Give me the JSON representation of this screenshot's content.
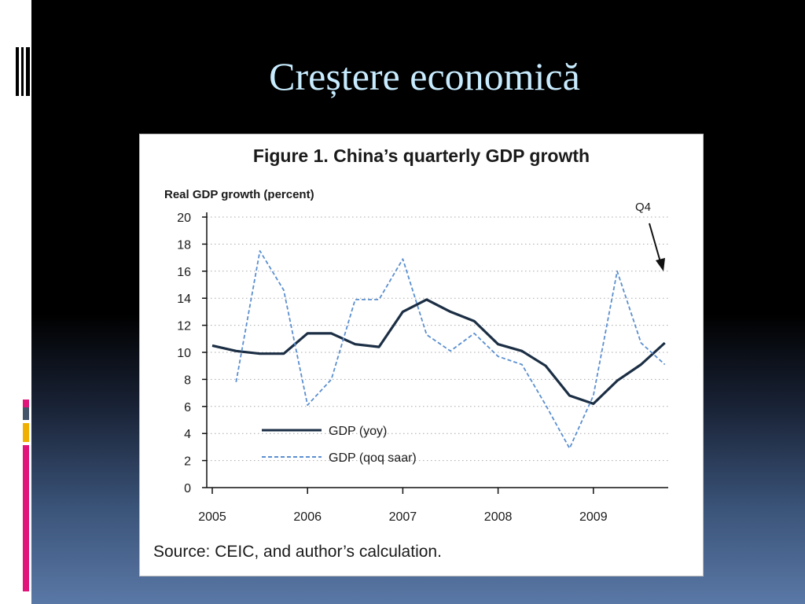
{
  "slide": {
    "title": "Creștere economică"
  },
  "theme": {
    "title_color": "#c8ecff",
    "yoy_color": "#1b2e44",
    "qoq_color": "#5b8fd0",
    "accent_colors": [
      "#e0147a",
      "#44556b",
      "#f0b000",
      "#e0147a"
    ]
  },
  "chart_data": {
    "type": "line",
    "title": "Figure 1. China’s quarterly GDP growth",
    "ylabel": "Real GDP growth (percent)",
    "ylim": [
      0,
      20
    ],
    "yticks": [
      "0",
      "2",
      "4",
      "6",
      "8",
      "10",
      "12",
      "14",
      "16",
      "18",
      "20"
    ],
    "year_labels": [
      "2005",
      "2006",
      "2007",
      "2008",
      "2009"
    ],
    "grid": true,
    "legend_position": "bottom-left",
    "annotation": "Q4",
    "source": "Source: CEIC, and author’s calculation.",
    "x": [
      "2005Q1",
      "2005Q2",
      "2005Q3",
      "2005Q4",
      "2006Q1",
      "2006Q2",
      "2006Q3",
      "2006Q4",
      "2007Q1",
      "2007Q2",
      "2007Q3",
      "2007Q4",
      "2008Q1",
      "2008Q2",
      "2008Q3",
      "2008Q4",
      "2009Q1",
      "2009Q2",
      "2009Q3",
      "2009Q4"
    ],
    "series": [
      {
        "name": "GDP (yoy)",
        "style": "solid",
        "values": [
          10.5,
          10.1,
          9.9,
          9.9,
          11.4,
          11.4,
          10.6,
          10.4,
          13.0,
          13.9,
          13.0,
          12.3,
          10.6,
          10.1,
          9.0,
          6.8,
          6.2,
          7.9,
          9.1,
          10.7
        ]
      },
      {
        "name": "GDP (qoq saar)",
        "style": "dashed",
        "values": [
          null,
          7.8,
          17.5,
          14.6,
          6.1,
          8.0,
          13.9,
          13.9,
          16.9,
          11.3,
          10.1,
          11.4,
          9.7,
          9.1,
          6.1,
          2.9,
          6.8,
          16.0,
          10.7,
          9.1
        ]
      }
    ]
  }
}
